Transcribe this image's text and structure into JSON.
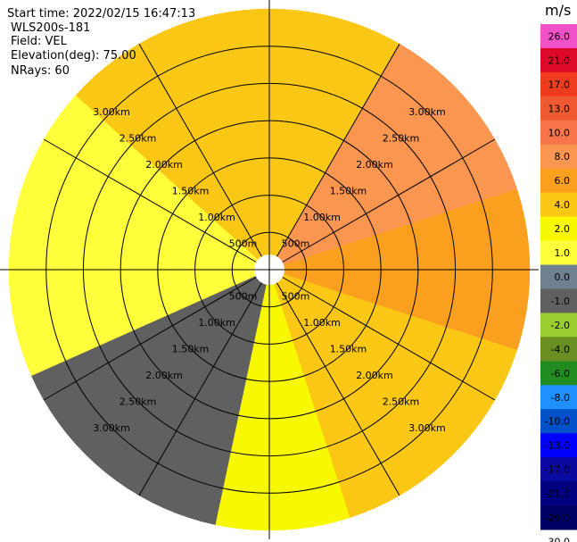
{
  "header": {
    "start_time": "Start time: 2022/02/15 16:47:13",
    "instrument": "WLS200s-181",
    "field": "Field: VEL",
    "elevation": "Elevation(deg): 75.00",
    "nrays": "NRays: 60"
  },
  "chart_data": {
    "type": "polar-ppi",
    "field": "VEL",
    "unit": "m/s",
    "n_rays": 60,
    "elevation_deg": 75.0,
    "range_rings_km": [
      0.5,
      1.0,
      1.5,
      2.0,
      2.5,
      3.0
    ],
    "ring_labels": [
      "500m",
      "1.00km",
      "1.50km",
      "2.00km",
      "2.50km",
      "3.00km"
    ],
    "max_range_km": 3.5,
    "azimuth_gridlines_deg": [
      0,
      30,
      60,
      90,
      120,
      150,
      180,
      210,
      240,
      270,
      300,
      330
    ],
    "sectors_approx": [
      {
        "az_from": 0,
        "az_to": 30,
        "velocity": 2.0
      },
      {
        "az_from": 30,
        "az_to": 75,
        "velocity": 6.0
      },
      {
        "az_from": 75,
        "az_to": 110,
        "velocity": 4.0
      },
      {
        "az_from": 110,
        "az_to": 160,
        "velocity": 2.0
      },
      {
        "az_from": 160,
        "az_to": 195,
        "velocity": 1.0
      },
      {
        "az_from": 195,
        "az_to": 245,
        "velocity": -2.0
      },
      {
        "az_from": 245,
        "az_to": 280,
        "velocity": 0.0
      },
      {
        "az_from": 280,
        "az_to": 310,
        "velocity": 0.0
      },
      {
        "az_from": 310,
        "az_to": 360,
        "velocity": 2.0
      }
    ],
    "colorbar": {
      "labels": [
        "26.0",
        "21.0",
        "17.0",
        "13.0",
        "10.0",
        "8.0",
        "6.0",
        "4.0",
        "2.0",
        "1.0",
        "0.0",
        "-1.0",
        "-2.0",
        "-4.0",
        "-6.0",
        "-8.0",
        "-10.0",
        "-13.0",
        "-17.0",
        "-21.0",
        "-26.0",
        "-30.0"
      ],
      "colors": [
        "#f050c8",
        "#dc0a28",
        "#f03c1e",
        "#f05a32",
        "#f8744a",
        "#fa9650",
        "#faa01e",
        "#fac814",
        "#f8f800",
        "#ffff3c",
        "#708090",
        "#606060",
        "#9acd32",
        "#6b8e23",
        "#228b22",
        "#1e90ff",
        "#0050c8",
        "#0000ff",
        "#0a0aa0",
        "#000080",
        "#000064"
      ]
    }
  }
}
